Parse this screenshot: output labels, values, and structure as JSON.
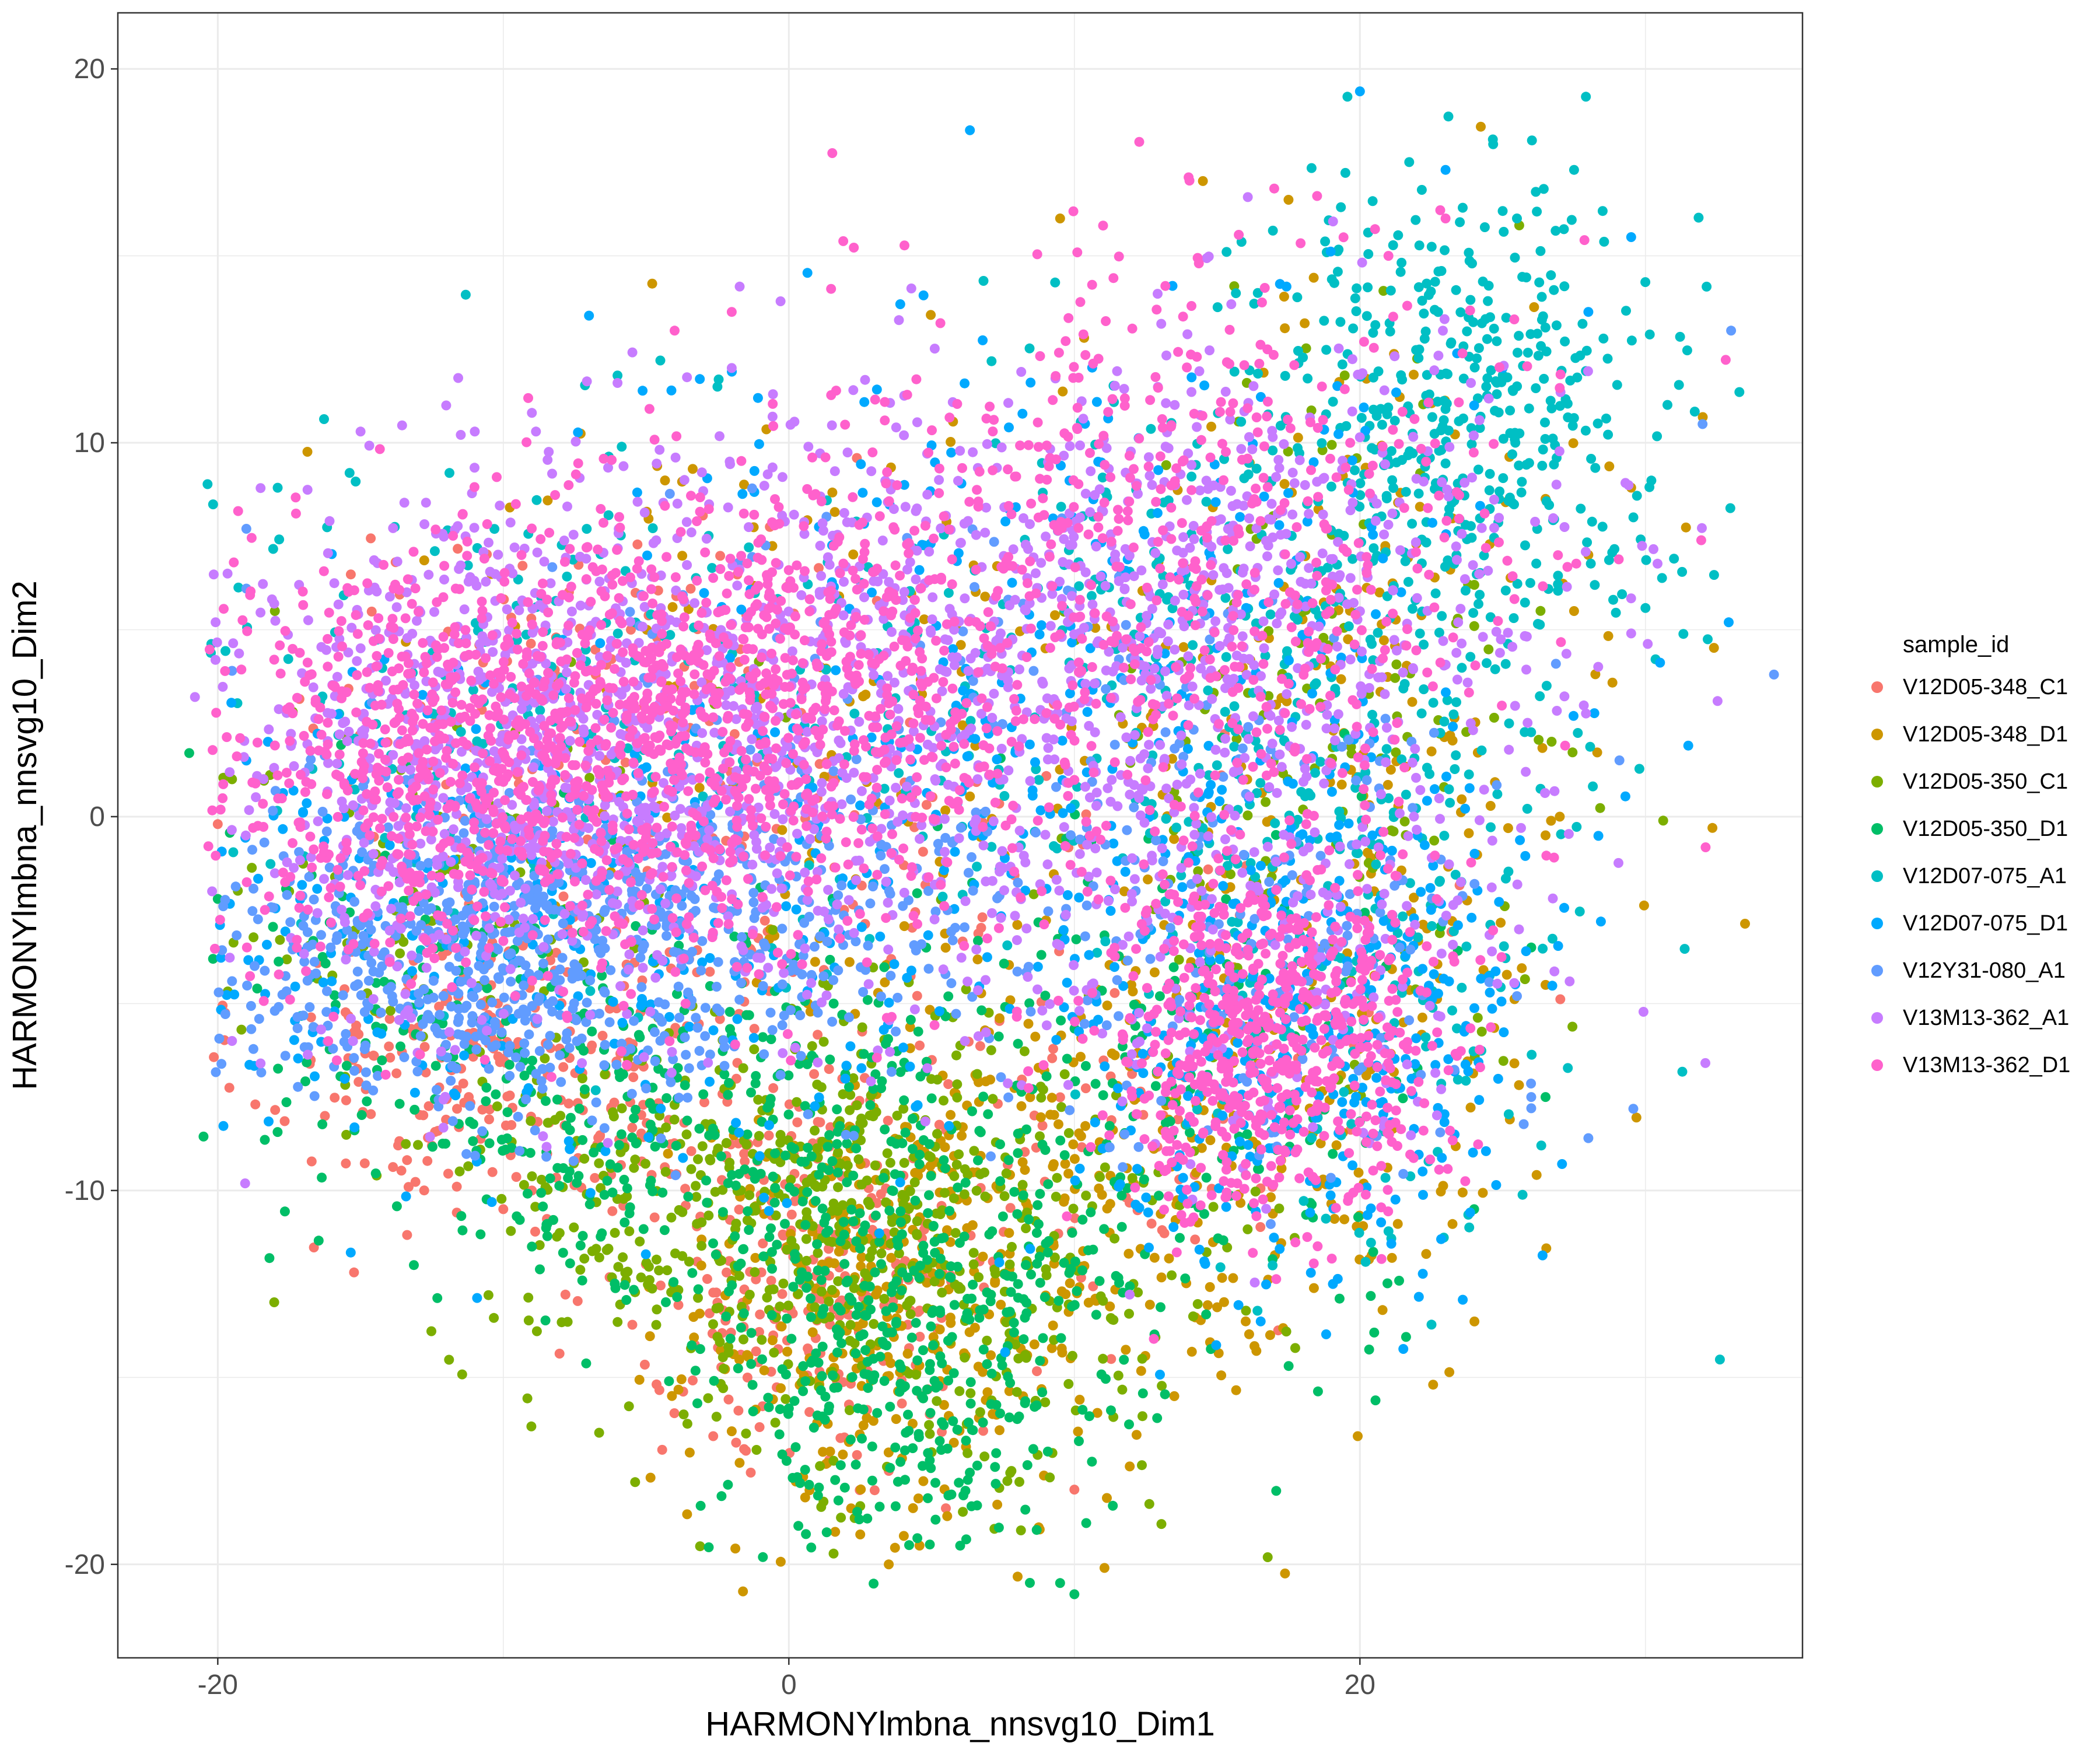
{
  "chart_data": {
    "type": "scatter",
    "title": "",
    "xlabel": "HARMONYlmbna_nnsvg10_Dim1",
    "ylabel": "HARMONYlmbna_nnsvg10_Dim2",
    "xlim": [
      -23.5,
      35.5
    ],
    "ylim": [
      -22.5,
      21.5
    ],
    "x_ticks": [
      -20,
      0,
      20
    ],
    "y_ticks": [
      20,
      10,
      0,
      -10,
      -20
    ],
    "x_tick_labels": [
      "-20",
      "0",
      "20"
    ],
    "y_tick_labels": [
      "20",
      "10",
      "0",
      "-10",
      "-20"
    ],
    "grid": true,
    "legend_position": "right",
    "legend_title": "sample_id",
    "series": [
      {
        "name": "V12D05-348_C1",
        "color": "#F8766D",
        "clusters": [
          {
            "cx": -10,
            "cy": -6.5,
            "sx": 4.5,
            "sy": 2.2,
            "n": 260
          },
          {
            "cx": 1,
            "cy": -12,
            "sx": 3.5,
            "sy": 2.8,
            "n": 260
          },
          {
            "cx": -6,
            "cy": 2,
            "sx": 6,
            "sy": 3,
            "n": 160
          },
          {
            "cx": 10,
            "cy": -6,
            "sx": 6,
            "sy": 4,
            "n": 120
          }
        ],
        "points": [
          [
            -20,
            -0.2
          ],
          [
            -12.5,
            -8.8
          ],
          [
            -10,
            -10.5
          ],
          [
            -2.5,
            -13
          ],
          [
            0.5,
            -12.5
          ],
          [
            3.5,
            -17.5
          ],
          [
            5.5,
            -18.5
          ],
          [
            10,
            -18
          ],
          [
            -9,
            -10
          ]
        ]
      },
      {
        "name": "V12D05-348_D1",
        "color": "#CD9600",
        "clusters": [
          {
            "cx": 4,
            "cy": -13,
            "sx": 4,
            "sy": 3.5,
            "n": 340
          },
          {
            "cx": 14,
            "cy": -8,
            "sx": 6,
            "sy": 4,
            "n": 260
          },
          {
            "cx": 20,
            "cy": 2,
            "sx": 5,
            "sy": 6,
            "n": 200
          },
          {
            "cx": 0,
            "cy": 4,
            "sx": 8,
            "sy": 4,
            "n": 120
          }
        ],
        "points": [
          [
            9.5,
            16
          ],
          [
            14.5,
            17
          ],
          [
            17.5,
            16.5
          ],
          [
            26.5,
            8.5
          ],
          [
            29.5,
            8.8
          ],
          [
            28,
            7
          ],
          [
            27.5,
            5.5
          ],
          [
            27,
            0
          ],
          [
            26.5,
            -0.5
          ],
          [
            26.5,
            -4.5
          ],
          [
            3.5,
            -20
          ],
          [
            2.5,
            -19.2
          ],
          [
            16,
            -13.5
          ],
          [
            10.5,
            -13
          ],
          [
            13.5,
            -15.5
          ]
        ]
      },
      {
        "name": "V12D05-350_C1",
        "color": "#7CAE00",
        "clusters": [
          {
            "cx": -2,
            "cy": -10.5,
            "sx": 5,
            "sy": 2.5,
            "n": 330
          },
          {
            "cx": 6,
            "cy": -12,
            "sx": 5,
            "sy": 3.5,
            "n": 300
          },
          {
            "cx": 18,
            "cy": 2,
            "sx": 4,
            "sy": 5,
            "n": 160
          },
          {
            "cx": -12,
            "cy": -2,
            "sx": 5,
            "sy": 3,
            "n": 120
          }
        ],
        "points": [
          [
            -19.5,
            1
          ],
          [
            -18,
            5.5
          ],
          [
            -17.5,
            -2
          ],
          [
            -8,
            -8
          ],
          [
            -1.5,
            -16.5
          ],
          [
            5,
            -17
          ],
          [
            11,
            -14.5
          ]
        ]
      },
      {
        "name": "V12D05-350_D1",
        "color": "#00BE67",
        "clusters": [
          {
            "cx": 4,
            "cy": -14,
            "sx": 3.5,
            "sy": 3,
            "n": 420
          },
          {
            "cx": -3,
            "cy": -8.5,
            "sx": 5,
            "sy": 2.2,
            "n": 280
          },
          {
            "cx": 14,
            "cy": -7,
            "sx": 5,
            "sy": 3.5,
            "n": 200
          },
          {
            "cx": -12,
            "cy": -5,
            "sx": 5,
            "sy": 2.5,
            "n": 150
          }
        ],
        "points": [
          [
            -8.5,
            -11
          ],
          [
            -9,
            -11.5
          ],
          [
            20.5,
            -13.8
          ],
          [
            9.5,
            -20.5
          ],
          [
            10,
            -20.8
          ],
          [
            6,
            -19.5
          ],
          [
            4.5,
            -19.3
          ],
          [
            24,
            -10.5
          ],
          [
            26.5,
            -7.5
          ],
          [
            26,
            -3.5
          ],
          [
            -21,
            1.7
          ],
          [
            -20,
            -2.2
          ]
        ]
      },
      {
        "name": "V12D07-075_A1",
        "color": "#00BFC4",
        "clusters": [
          {
            "cx": 24,
            "cy": 11,
            "sx": 3.5,
            "sy": 3,
            "n": 380
          },
          {
            "cx": 16,
            "cy": 5,
            "sx": 6,
            "sy": 4,
            "n": 300
          },
          {
            "cx": -6,
            "cy": 3,
            "sx": 8,
            "sy": 3.5,
            "n": 260
          },
          {
            "cx": 20,
            "cy": -4,
            "sx": 4,
            "sy": 4,
            "n": 200
          }
        ],
        "points": [
          [
            27.5,
            17.3
          ],
          [
            28.5,
            16.2
          ],
          [
            23.5,
            15.9
          ],
          [
            25.5,
            16
          ],
          [
            31,
            6.9
          ],
          [
            25,
            16.2
          ],
          [
            -2.5,
            11.5
          ],
          [
            -6,
            11.8
          ],
          [
            -4.5,
            12.2
          ]
        ]
      },
      {
        "name": "V12D07-075_D1",
        "color": "#00A9FF",
        "clusters": [
          {
            "cx": 18,
            "cy": -6,
            "sx": 4,
            "sy": 3.5,
            "n": 360
          },
          {
            "cx": -8,
            "cy": -2.5,
            "sx": 9,
            "sy": 3.5,
            "n": 380
          },
          {
            "cx": 10,
            "cy": 4,
            "sx": 8,
            "sy": 4.5,
            "n": 300
          }
        ],
        "points": [
          [
            20,
            19.4
          ],
          [
            23,
            17.3
          ],
          [
            29.5,
            15.5
          ],
          [
            28,
            13.5
          ],
          [
            -7,
            13.4
          ],
          [
            -19,
            1.5
          ],
          [
            31.5,
            1.9
          ],
          [
            24,
            11
          ],
          [
            25,
            12
          ]
        ]
      },
      {
        "name": "V12Y31-080_A1",
        "color": "#619CFF",
        "clusters": [
          {
            "cx": -12,
            "cy": -3.5,
            "sx": 4.5,
            "sy": 2.2,
            "n": 520
          },
          {
            "cx": -4,
            "cy": -3,
            "sx": 5,
            "sy": 2.2,
            "n": 360
          },
          {
            "cx": 16,
            "cy": -3,
            "sx": 5,
            "sy": 3,
            "n": 180
          },
          {
            "cx": 5,
            "cy": 2,
            "sx": 7,
            "sy": 3,
            "n": 150
          }
        ],
        "points": [
          [
            33,
            13
          ],
          [
            32,
            10.5
          ],
          [
            34.5,
            3.8
          ],
          [
            26,
            -7.5
          ],
          [
            26,
            -7.8
          ],
          [
            28,
            -8.6
          ],
          [
            25.5,
            -4.8
          ],
          [
            -19.5,
            3.9
          ],
          [
            -19.5,
            -4.4
          ],
          [
            -19,
            7.7
          ],
          [
            -19,
            6.1
          ]
        ]
      },
      {
        "name": "V13M13-362_A1",
        "color": "#C77CFF",
        "clusters": [
          {
            "cx": -10,
            "cy": 1.5,
            "sx": 5,
            "sy": 3.5,
            "n": 780
          },
          {
            "cx": 2,
            "cy": 3,
            "sx": 6,
            "sy": 4,
            "n": 620
          },
          {
            "cx": 15,
            "cy": 6,
            "sx": 6,
            "sy": 3.5,
            "n": 520
          },
          {
            "cx": 17,
            "cy": -2,
            "sx": 5,
            "sy": 4,
            "n": 260
          }
        ],
        "points": [
          [
            -20.8,
            3.2
          ],
          [
            -19.5,
            -6
          ],
          [
            -18.5,
            -6.6
          ],
          [
            -12,
            11
          ],
          [
            -11,
            10.3
          ],
          [
            -15,
            10.3
          ],
          [
            29.5,
            4.9
          ],
          [
            -2,
            12
          ],
          [
            -6,
            11.6
          ],
          [
            -9,
            10.8
          ]
        ]
      },
      {
        "name": "V13M13-362_D1",
        "color": "#FF61CC",
        "clusters": [
          {
            "cx": -10,
            "cy": 1.5,
            "sx": 6,
            "sy": 3,
            "n": 1000
          },
          {
            "cx": 0,
            "cy": 3,
            "sx": 5,
            "sy": 3,
            "n": 620
          },
          {
            "cx": 17,
            "cy": -6,
            "sx": 3,
            "sy": 2.5,
            "n": 660
          },
          {
            "cx": 14,
            "cy": 7,
            "sx": 6,
            "sy": 4,
            "n": 560
          }
        ],
        "points": [
          [
            14,
            17.1
          ],
          [
            17,
            16.8
          ],
          [
            18.5,
            16.6
          ],
          [
            21,
            15
          ],
          [
            -2,
            13.5
          ],
          [
            -4,
            13
          ],
          [
            23,
            16
          ]
        ]
      }
    ]
  }
}
